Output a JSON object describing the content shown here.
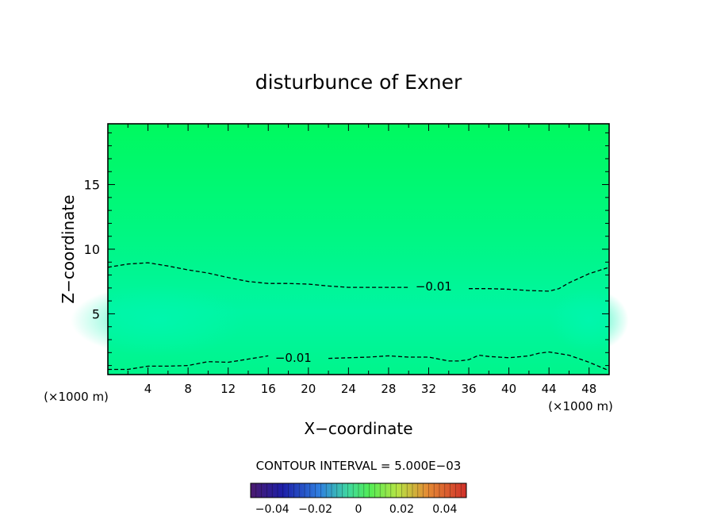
{
  "chart_data": {
    "type": "contour",
    "title": "disturbunce of Exner",
    "xlabel": "X−coordinate",
    "ylabel": "Z−coordinate",
    "x_unit_left": "(×1000 m)",
    "x_unit_right": "(×1000 m)",
    "xlim": [
      0,
      50
    ],
    "ylim": [
      0.3,
      19.7
    ],
    "x_ticks": [
      4,
      8,
      12,
      16,
      20,
      24,
      28,
      32,
      36,
      40,
      44,
      48
    ],
    "x_tick_labels": [
      "4",
      "8",
      "12",
      "16",
      "20",
      "24",
      "28",
      "32",
      "36",
      "40",
      "44",
      "48"
    ],
    "y_ticks": [
      5,
      10,
      15
    ],
    "y_tick_labels": [
      "5",
      "10",
      "15"
    ],
    "grid": false,
    "contour_interval_text": "CONTOUR INTERVAL = 5.000E−03",
    "fill_colors": {
      "top": "#00f95f",
      "mid": "#00f783",
      "low": "#00f5a2",
      "edge": "#00f58b"
    },
    "contours": [
      {
        "level_label": "−0.01",
        "style": "dashed",
        "label_position": [
          32.5,
          7.1
        ],
        "points": [
          [
            0,
            8.6
          ],
          [
            2,
            8.85
          ],
          [
            4,
            8.95
          ],
          [
            6,
            8.7
          ],
          [
            8,
            8.4
          ],
          [
            10,
            8.15
          ],
          [
            12,
            7.8
          ],
          [
            14,
            7.5
          ],
          [
            16,
            7.35
          ],
          [
            18,
            7.35
          ],
          [
            20,
            7.3
          ],
          [
            22,
            7.15
          ],
          [
            24,
            7.05
          ],
          [
            26,
            7.05
          ],
          [
            28,
            7.05
          ],
          [
            30,
            7.05
          ],
          [
            32,
            7.05
          ],
          [
            34,
            7.05
          ],
          [
            36,
            6.95
          ],
          [
            38,
            6.95
          ],
          [
            40,
            6.9
          ],
          [
            42,
            6.8
          ],
          [
            44,
            6.75
          ],
          [
            45,
            6.95
          ],
          [
            46,
            7.4
          ],
          [
            48,
            8.1
          ],
          [
            50,
            8.6
          ]
        ]
      },
      {
        "level_label": "−0.01",
        "style": "dashed",
        "label_position": [
          18.5,
          1.6
        ],
        "points": [
          [
            0,
            0.7
          ],
          [
            2,
            0.7
          ],
          [
            4,
            0.95
          ],
          [
            6,
            0.95
          ],
          [
            8,
            1.0
          ],
          [
            10,
            1.3
          ],
          [
            12,
            1.25
          ],
          [
            14,
            1.5
          ],
          [
            16,
            1.75
          ],
          [
            18,
            1.65
          ],
          [
            20,
            1.6
          ],
          [
            22,
            1.55
          ],
          [
            24,
            1.6
          ],
          [
            26,
            1.65
          ],
          [
            28,
            1.75
          ],
          [
            30,
            1.65
          ],
          [
            32,
            1.65
          ],
          [
            34,
            1.35
          ],
          [
            35,
            1.35
          ],
          [
            36,
            1.45
          ],
          [
            37,
            1.8
          ],
          [
            38,
            1.7
          ],
          [
            40,
            1.6
          ],
          [
            42,
            1.75
          ],
          [
            43,
            1.95
          ],
          [
            44,
            2.05
          ],
          [
            46,
            1.8
          ],
          [
            48,
            1.25
          ],
          [
            50,
            0.6
          ]
        ]
      }
    ],
    "colorbar": {
      "ticks": [
        -0.04,
        -0.02,
        0,
        0.02,
        0.04
      ],
      "tick_labels": [
        "−0.04",
        "−0.02",
        "0",
        "0.02",
        "0.04"
      ],
      "range": [
        -0.05,
        0.05
      ]
    }
  }
}
